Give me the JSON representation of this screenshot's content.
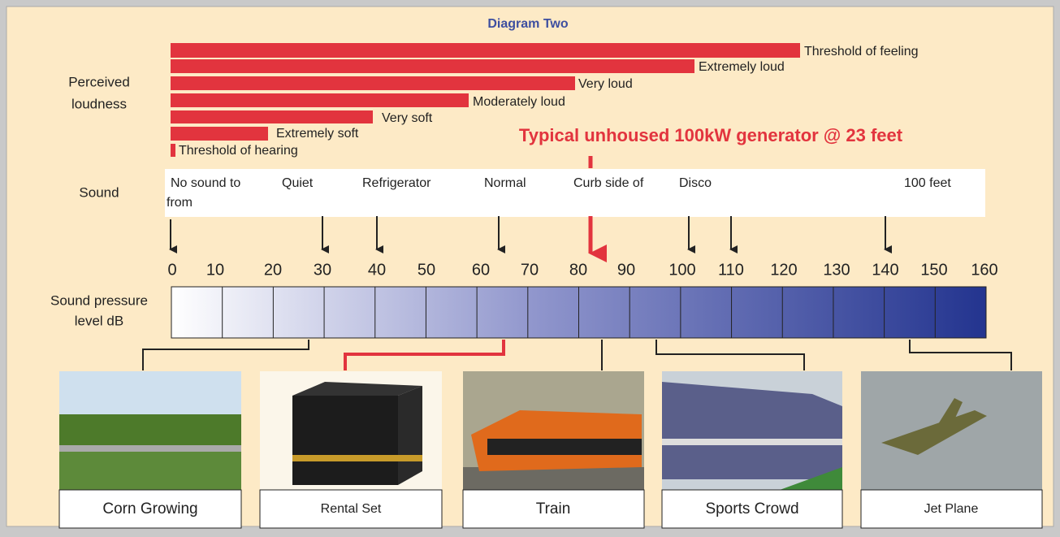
{
  "title": "Diagram Two",
  "headline": "Typical unhoused 100kW generator @ 23 feet",
  "row_labels": {
    "loudness": [
      "Perceived",
      "loudness"
    ],
    "sound": "Sound",
    "spl": [
      "Sound pressure",
      "level dB"
    ]
  },
  "loudness_levels": [
    "Threshold of feeling",
    "Extremely loud",
    "Very loud",
    "Moderately loud",
    "Very soft",
    "Extremely soft",
    "Threshold of hearing"
  ],
  "sounds": [
    "No sound to",
    "from",
    "Quiet",
    "Refrigerator",
    "Normal",
    "Curb side of",
    "Disco",
    "100 feet"
  ],
  "scale": [
    "0",
    "10",
    "20",
    "30",
    "40",
    "50",
    "60",
    "70",
    "80",
    "90",
    "100",
    "110",
    "120",
    "130",
    "140",
    "150",
    "160"
  ],
  "examples": [
    "Corn Growing",
    "Rental Set",
    "Train",
    "Sports Crowd",
    "Jet Plane"
  ]
}
